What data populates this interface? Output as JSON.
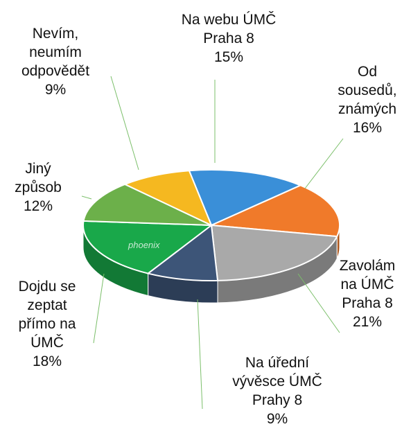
{
  "chart_data": {
    "type": "pie3d",
    "categories": [
      "Na webu ÚMČ\nPraha 8",
      "Od\nsousedů,\nznámých",
      "Zavolám\nna ÚMČ\nPraha 8",
      "Na úřední\nvývěsce ÚMČ\nPrahy 8",
      "Dojdu se\nzeptat\npřímo na\nÚMČ",
      "Jiný\nzpůsob",
      "Nevím,\nneumím\nodpovědět"
    ],
    "values": [
      15,
      16,
      21,
      9,
      18,
      12,
      9
    ],
    "value_labels": [
      "15%",
      "16%",
      "21%",
      "9%",
      "18%",
      "12%",
      "9%"
    ],
    "colors": [
      "#3a8fd8",
      "#f07a2a",
      "#a9a9a9",
      "#3d5578",
      "#19a84a",
      "#6cb04a",
      "#f5b820"
    ],
    "watermark": "phoenix"
  }
}
